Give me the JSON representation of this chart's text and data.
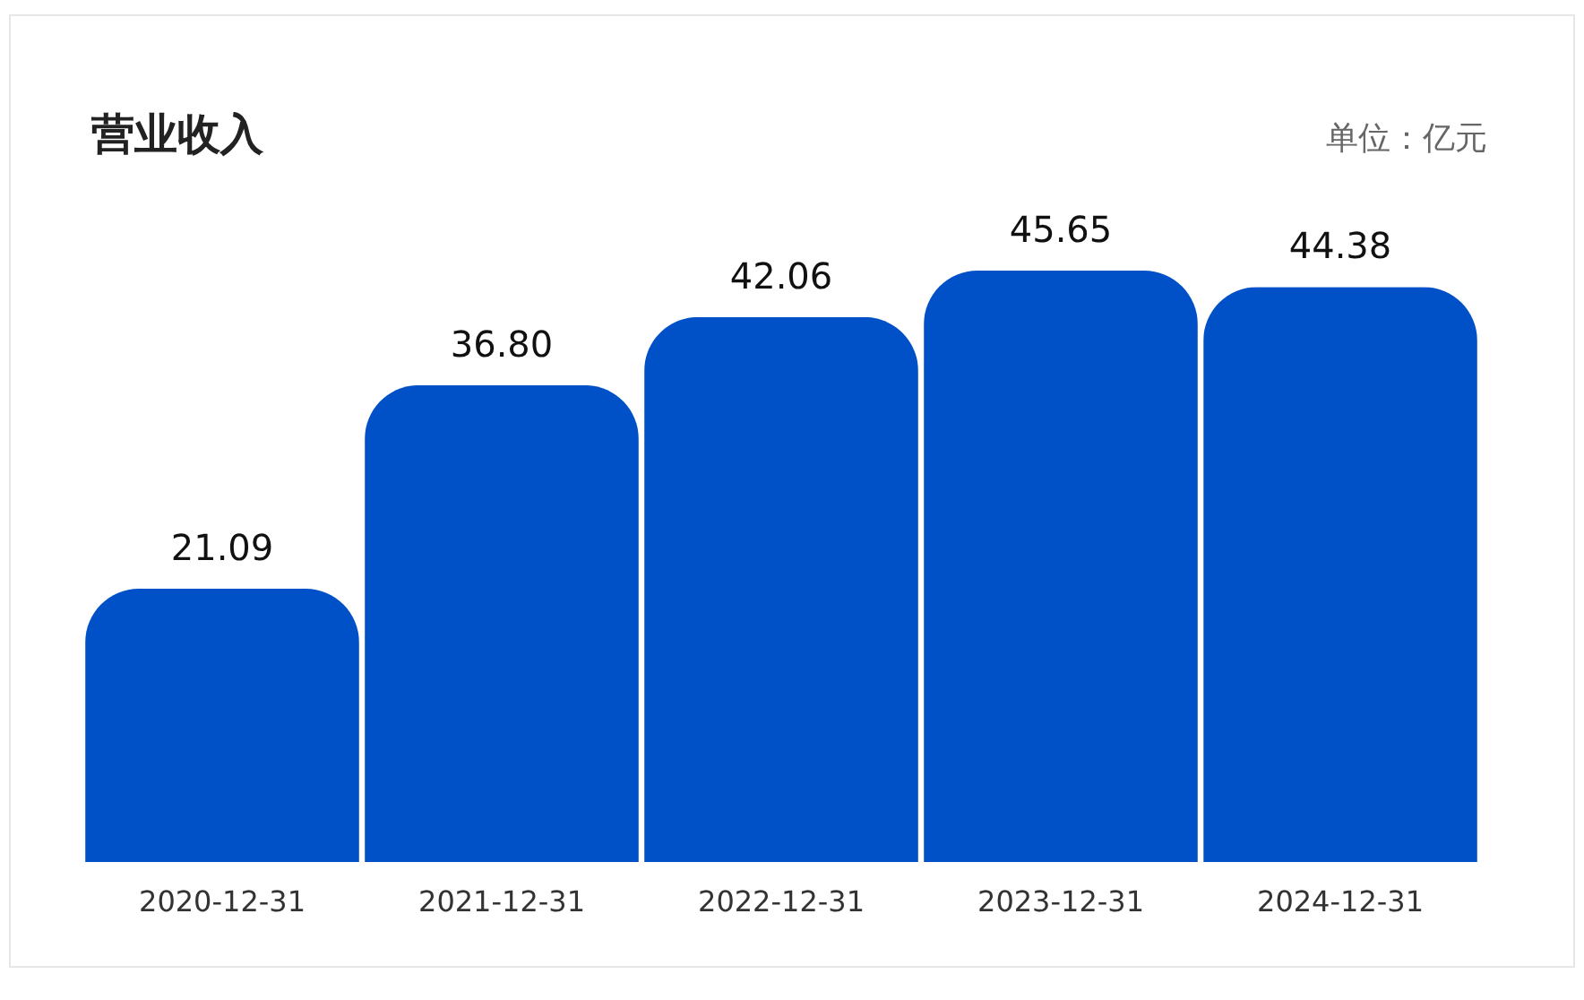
{
  "chart_data": {
    "type": "bar",
    "title": "营业收入",
    "annotations": [
      "单位：亿元"
    ],
    "categories": [
      "2020-12-31",
      "2021-12-31",
      "2022-12-31",
      "2023-12-31",
      "2024-12-31"
    ],
    "values": [
      21.09,
      36.8,
      42.06,
      45.65,
      44.38
    ],
    "value_labels": [
      "21.09",
      "36.80",
      "42.06",
      "45.65",
      "44.38"
    ],
    "color": "#0050c8",
    "grid": false
  }
}
